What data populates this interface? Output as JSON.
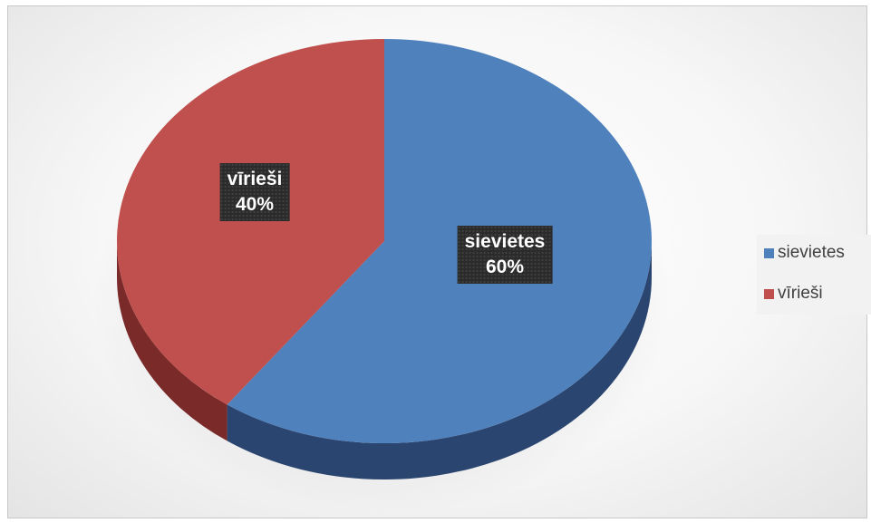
{
  "chart_data": {
    "type": "pie",
    "style": "3d",
    "title": "",
    "slices": [
      {
        "label": "sievietes",
        "value": 60,
        "display": "60%",
        "color": "#4f81bd",
        "side_color": "#2a4570"
      },
      {
        "label": "vīrieši",
        "value": 40,
        "display": "40%",
        "color": "#c0504d",
        "side_color": "#7a2a29"
      }
    ],
    "legend": {
      "position": "right",
      "items": [
        {
          "label": "sievietes",
          "color": "#4f81bd"
        },
        {
          "label": "vīrieši",
          "color": "#c0504d"
        }
      ]
    }
  }
}
